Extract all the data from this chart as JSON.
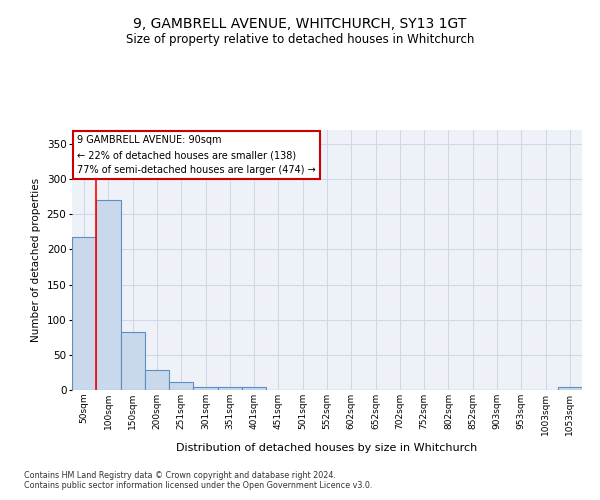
{
  "title": "9, GAMBRELL AVENUE, WHITCHURCH, SY13 1GT",
  "subtitle": "Size of property relative to detached houses in Whitchurch",
  "xlabel": "Distribution of detached houses by size in Whitchurch",
  "ylabel": "Number of detached properties",
  "bar_values": [
    218,
    270,
    83,
    29,
    11,
    4,
    4,
    4,
    0,
    0,
    0,
    0,
    0,
    0,
    0,
    0,
    0,
    0,
    0,
    0,
    4
  ],
  "bar_labels": [
    "50sqm",
    "100sqm",
    "150sqm",
    "200sqm",
    "251sqm",
    "301sqm",
    "351sqm",
    "401sqm",
    "451sqm",
    "501sqm",
    "552sqm",
    "602sqm",
    "652sqm",
    "702sqm",
    "752sqm",
    "802sqm",
    "852sqm",
    "903sqm",
    "953sqm",
    "1003sqm",
    "1053sqm"
  ],
  "bar_color": "#c9d9eb",
  "bar_edge_color": "#5a8fc3",
  "bar_edge_width": 0.8,
  "ylim": [
    0,
    370
  ],
  "yticks": [
    0,
    50,
    100,
    150,
    200,
    250,
    300,
    350
  ],
  "annotation_text": "9 GAMBRELL AVENUE: 90sqm\n← 22% of detached houses are smaller (138)\n77% of semi-detached houses are larger (474) →",
  "annotation_box_color": "#ffffff",
  "annotation_box_edge_color": "#cc0000",
  "grid_color": "#d0d8e8",
  "bg_color": "#eef2f8",
  "footer_line1": "Contains HM Land Registry data © Crown copyright and database right 2024.",
  "footer_line2": "Contains public sector information licensed under the Open Government Licence v3.0."
}
